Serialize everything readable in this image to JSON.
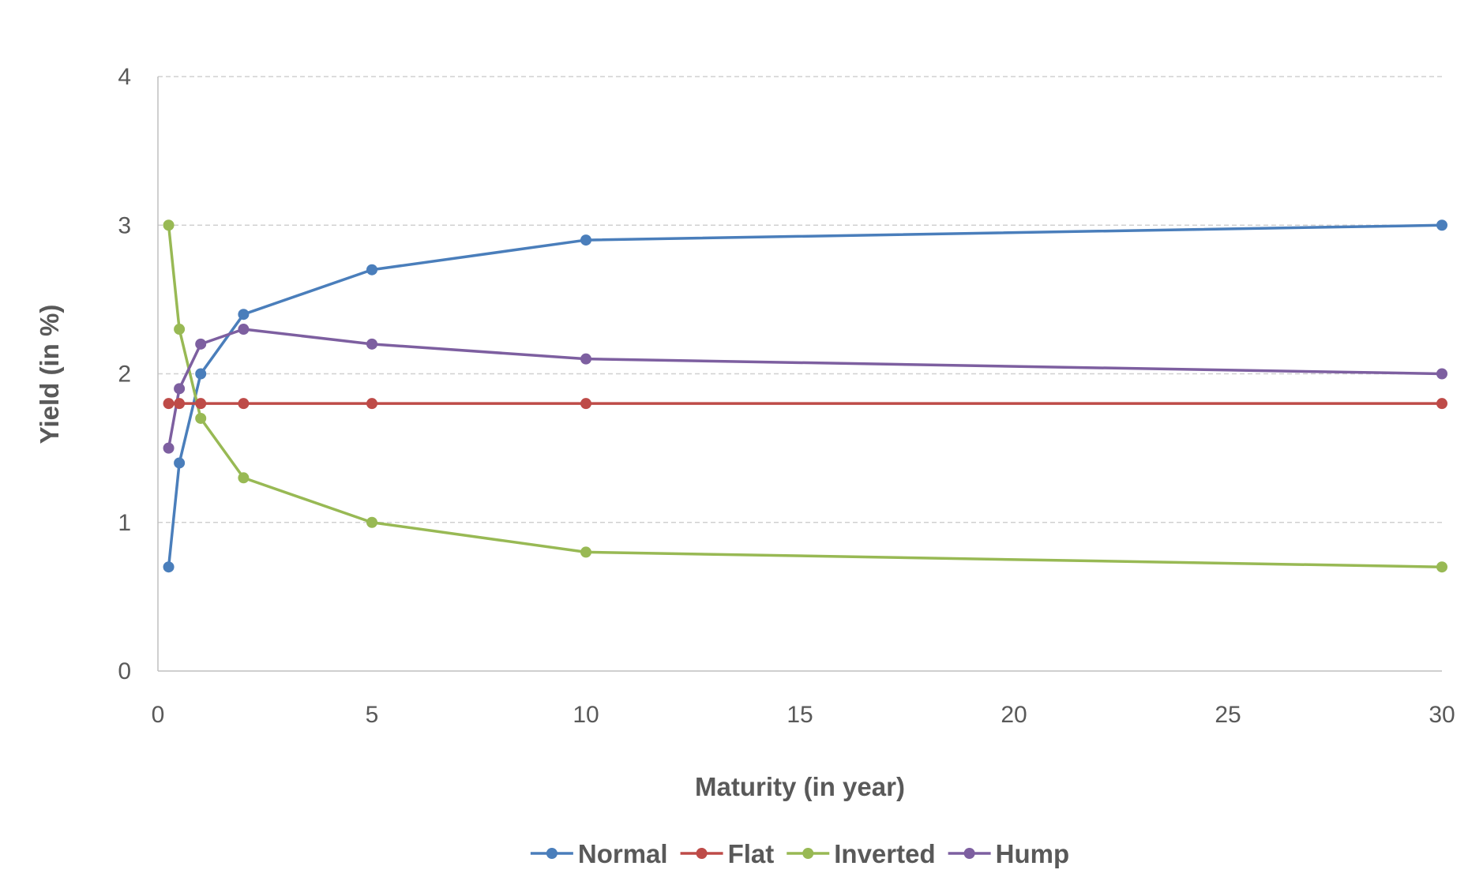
{
  "chart_data": {
    "type": "line",
    "xlabel": "Maturity (in year)",
    "ylabel": "Yield (in %)",
    "xlim": [
      0,
      30
    ],
    "ylim": [
      0,
      4
    ],
    "x_ticks": [
      "0",
      "5",
      "10",
      "15",
      "20",
      "25",
      "30"
    ],
    "y_ticks": [
      "0",
      "1",
      "2",
      "3",
      "4"
    ],
    "grid": "horizontal dashed",
    "legend_position": "bottom",
    "x": [
      0.25,
      0.5,
      1,
      2,
      5,
      10,
      30
    ],
    "series": [
      {
        "name": "Normal",
        "color": "#4a7ebb",
        "values": [
          0.7,
          1.4,
          2.0,
          2.4,
          2.7,
          2.9,
          3.0
        ]
      },
      {
        "name": "Flat",
        "color": "#be4b48",
        "values": [
          1.8,
          1.8,
          1.8,
          1.8,
          1.8,
          1.8,
          1.8
        ]
      },
      {
        "name": "Inverted",
        "color": "#98b954",
        "values": [
          3.0,
          2.3,
          1.7,
          1.3,
          1.0,
          0.8,
          0.7
        ]
      },
      {
        "name": "Hump",
        "color": "#7d5fa0",
        "values": [
          1.5,
          1.9,
          2.2,
          2.3,
          2.2,
          2.1,
          2.0
        ]
      }
    ]
  }
}
